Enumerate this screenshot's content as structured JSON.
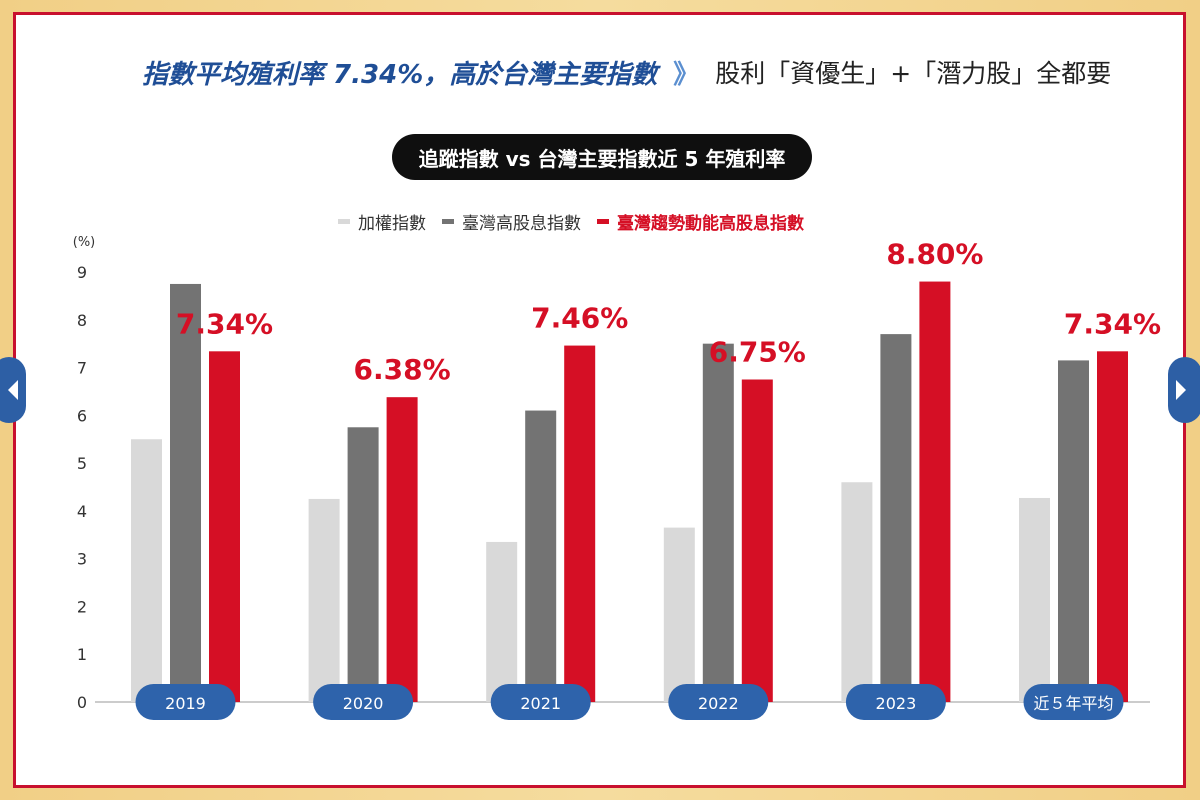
{
  "headline": {
    "main": "指數平均殖利率 7.34%，高於台灣主要指數",
    "chevron": "》",
    "sub": "股利「資優生」+「潛力股」全都要"
  },
  "chart_title": "追蹤指數 vs 台灣主要指數近 5 年殖利率",
  "colors": {
    "gray_light": "#d9d9d9",
    "gray_dark": "#737373",
    "red": "#d50f25",
    "pill_blue": "#2e63ab",
    "navy_title": "#1f4e96"
  },
  "nav": {
    "left_icon": "arrow-left-icon",
    "right_icon": "arrow-right-icon"
  },
  "chart_data": {
    "type": "bar",
    "y_unit_label": "(%)",
    "ylim": [
      0,
      9
    ],
    "yticks": [
      0,
      1,
      2,
      3,
      4,
      5,
      6,
      7,
      8,
      9
    ],
    "categories": [
      "2019",
      "2020",
      "2021",
      "2022",
      "2023",
      "近５年平均"
    ],
    "series": [
      {
        "name": "加權指數",
        "color": "#d9d9d9",
        "values": [
          5.5,
          4.25,
          3.35,
          3.65,
          4.6,
          4.27
        ]
      },
      {
        "name": "臺灣高股息指數",
        "color": "#737373",
        "values": [
          8.75,
          5.75,
          6.1,
          7.5,
          7.7,
          7.15
        ]
      },
      {
        "name": "臺灣趨勢動能高股息指數",
        "color": "#d50f25",
        "values": [
          7.34,
          6.38,
          7.46,
          6.75,
          8.8,
          7.34
        ]
      }
    ],
    "data_labels": [
      "7.34%",
      "6.38%",
      "7.46%",
      "6.75%",
      "8.80%",
      "7.34%"
    ],
    "legend_position": "top",
    "grid": false
  }
}
